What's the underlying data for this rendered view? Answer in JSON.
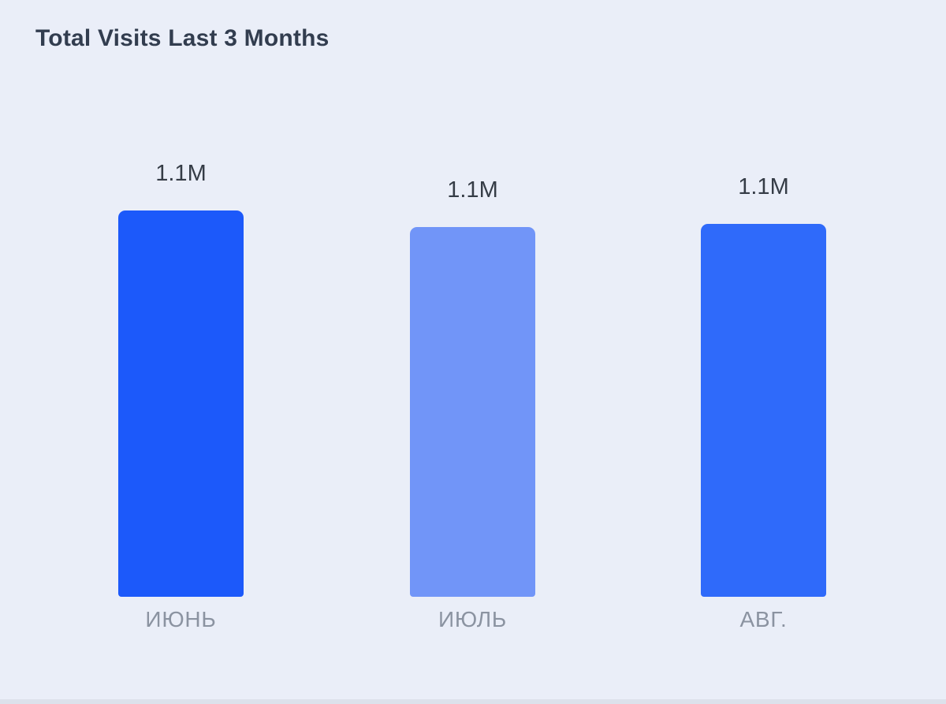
{
  "page": {
    "background_color": "#EAEEF8",
    "bottom_strip_color": "#DCE1EB"
  },
  "header": {
    "title": "Total Visits Last 3 Months",
    "title_color": "#323D4F"
  },
  "chart_data": {
    "type": "bar",
    "title": "Total Visits Last 3 Months",
    "categories": [
      "ИЮНЬ",
      "ИЮЛЬ",
      "АВГ."
    ],
    "values": [
      1140000,
      1090000,
      1100000
    ],
    "value_labels": [
      "1.1M",
      "1.1M",
      "1.1M"
    ],
    "bar_colors": [
      "#1C59FA",
      "#7195F8",
      "#2F6AFA"
    ],
    "value_label_color": "#353C46",
    "category_label_color": "#8B93A1",
    "ylim": [
      0,
      1140000
    ],
    "grid": false,
    "legend": false,
    "x_axis_visible": false,
    "y_axis_visible": false
  }
}
